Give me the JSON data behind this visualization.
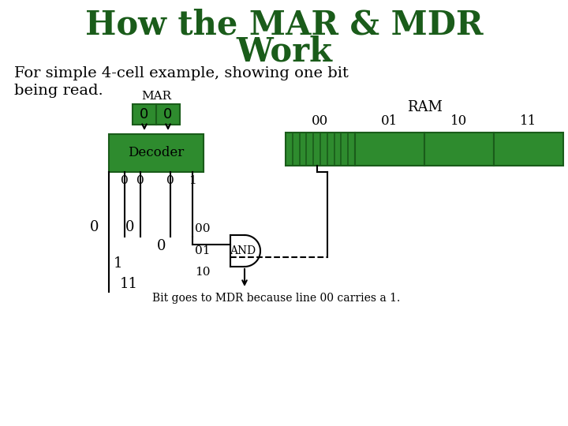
{
  "title_line1": "How the MAR & MDR",
  "title_line2": "Work",
  "subtitle_line1": "For simple 4-cell example, showing one bit",
  "subtitle_line2": "being read.",
  "title_color": "#1a5c1a",
  "green_color": "#2e8b2e",
  "dark_green_border": "#1a5c1a",
  "bg_color": "#ffffff",
  "black": "#000000",
  "mar_label": "MAR",
  "decoder_label": "Decoder",
  "ram_label": "RAM",
  "ram_cols": [
    "00",
    "01",
    "10",
    "11"
  ],
  "bottom_text": "Bit goes to MDR because line 00 carries a 1.",
  "and_label": "AND",
  "mar_cells": [
    "0",
    "0"
  ],
  "decoder_out_labels": [
    "0",
    "0",
    "0",
    "1"
  ],
  "left_side_labels": [
    "0",
    "0",
    "1",
    "11"
  ],
  "right_line_labels": [
    "00",
    "01",
    "10"
  ]
}
